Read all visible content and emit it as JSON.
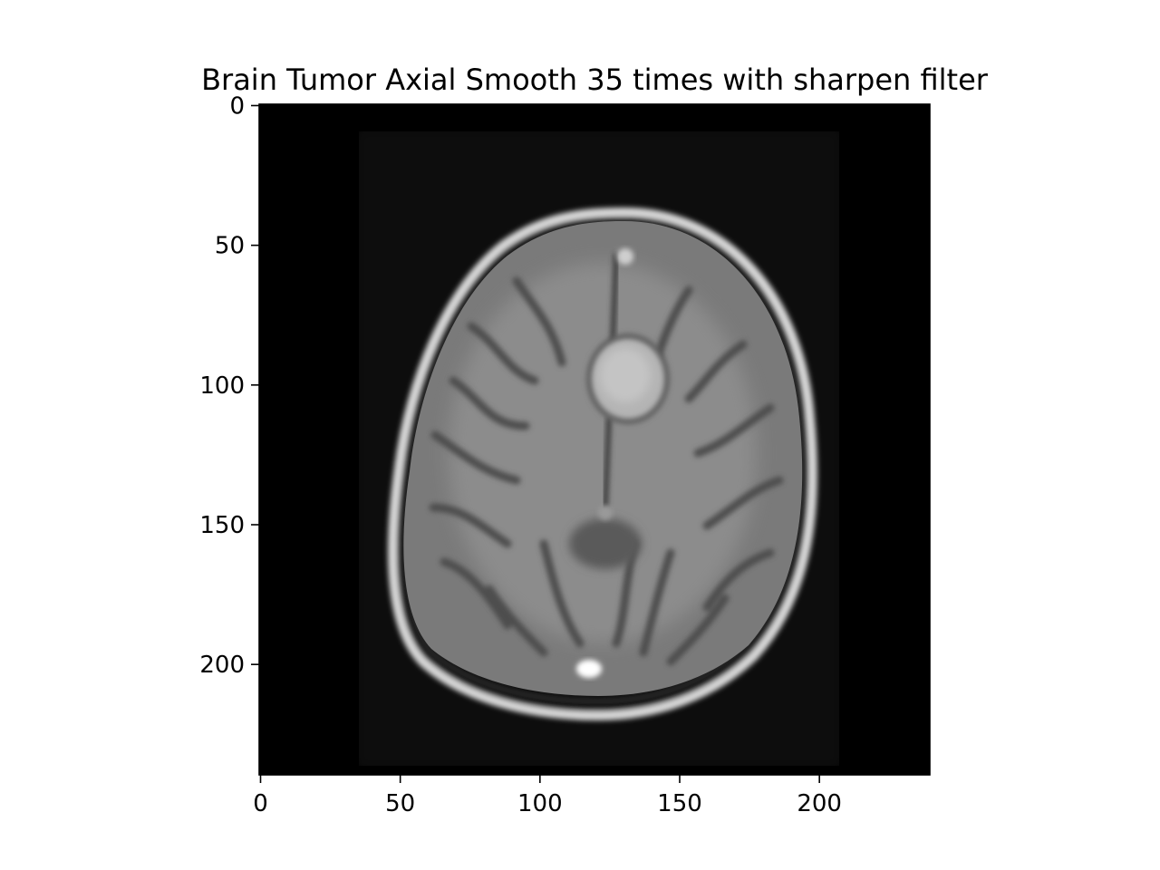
{
  "figure": {
    "title": "Brain Tumor Axial Smooth 35 times with sharpen filter"
  },
  "image": {
    "subject": "axial brain MRI slice with a bright round tumor near the midline, smoothed and sharpened, grayscale",
    "colormap": "gray",
    "extent_x": [
      0,
      240
    ],
    "extent_y": [
      0,
      240
    ]
  },
  "axes": {
    "x_ticks": [
      0,
      50,
      100,
      150,
      200
    ],
    "y_ticks": [
      0,
      50,
      100,
      150,
      200
    ],
    "y_inverted": true,
    "grid": false
  }
}
